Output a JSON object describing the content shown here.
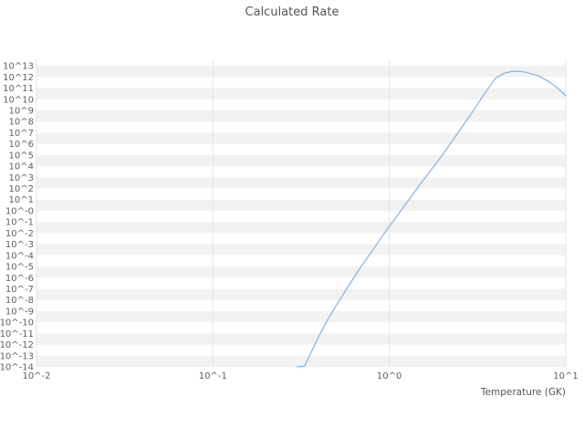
{
  "chart_data": {
    "type": "line",
    "title": "Calculated Rate",
    "xlabel": "Temperature (GK)",
    "ylabel": "",
    "x_scale": "log",
    "y_scale": "log",
    "xlim_log10": [
      -2,
      1
    ],
    "ylim_log10": [
      -14,
      13.5
    ],
    "grid": true,
    "legend": "none",
    "x_ticks": [
      {
        "exp": -2,
        "label": "10^-2"
      },
      {
        "exp": -1,
        "label": "10^-1"
      },
      {
        "exp": 0,
        "label": "10^0"
      },
      {
        "exp": 1,
        "label": "10^1"
      }
    ],
    "y_ticks": [
      {
        "exp": 13,
        "label": "10^13"
      },
      {
        "exp": 12,
        "label": "10^12"
      },
      {
        "exp": 11,
        "label": "10^11"
      },
      {
        "exp": 10,
        "label": "10^10"
      },
      {
        "exp": 9,
        "label": "10^9"
      },
      {
        "exp": 8,
        "label": "10^8"
      },
      {
        "exp": 7,
        "label": "10^7"
      },
      {
        "exp": 6,
        "label": "10^6"
      },
      {
        "exp": 5,
        "label": "10^5"
      },
      {
        "exp": 4,
        "label": "10^4"
      },
      {
        "exp": 3,
        "label": "10^3"
      },
      {
        "exp": 2,
        "label": "10^2"
      },
      {
        "exp": 1,
        "label": "10^1"
      },
      {
        "exp": 0,
        "label": "10^-0"
      },
      {
        "exp": -1,
        "label": "10^-1"
      },
      {
        "exp": -2,
        "label": "10^-2"
      },
      {
        "exp": -3,
        "label": "10^-3"
      },
      {
        "exp": -4,
        "label": "10^-4"
      },
      {
        "exp": -5,
        "label": "10^-5"
      },
      {
        "exp": -6,
        "label": "10^-6"
      },
      {
        "exp": -7,
        "label": "10^-7"
      },
      {
        "exp": -8,
        "label": "10^-8"
      },
      {
        "exp": -9,
        "label": "10^-9"
      },
      {
        "exp": -10,
        "label": "10^-10"
      },
      {
        "exp": -11,
        "label": "10^-11"
      },
      {
        "exp": -12,
        "label": "10^-12"
      },
      {
        "exp": -13,
        "label": "10^-13"
      },
      {
        "exp": -14,
        "label": "10^-14"
      }
    ],
    "series": [
      {
        "name": "calculated-rate",
        "color": "#7cb5ec",
        "x_gk": [
          0.3,
          0.33,
          0.36,
          0.4,
          0.45,
          0.5,
          0.6,
          0.7,
          0.8,
          0.9,
          1.0,
          1.2,
          1.5,
          2.0,
          2.5,
          3.0,
          3.5,
          4.0,
          4.5,
          5.0,
          5.5,
          6.0,
          7.0,
          8.0,
          9.0,
          10.0
        ],
        "y_log10_rate": [
          -14.0,
          -13.95,
          -12.7,
          -11.2,
          -9.7,
          -8.5,
          -6.5,
          -4.9,
          -3.6,
          -2.4,
          -1.4,
          0.3,
          2.4,
          5.0,
          7.2,
          9.0,
          10.6,
          11.9,
          12.35,
          12.5,
          12.5,
          12.4,
          12.1,
          11.6,
          11.0,
          10.3
        ]
      }
    ],
    "colors": {
      "line": "#7cb5ec",
      "band": "#f2f2f2",
      "grid": "#e4e4e4",
      "tick_text": "#606060",
      "title_text": "#555555",
      "background": "#ffffff"
    }
  }
}
